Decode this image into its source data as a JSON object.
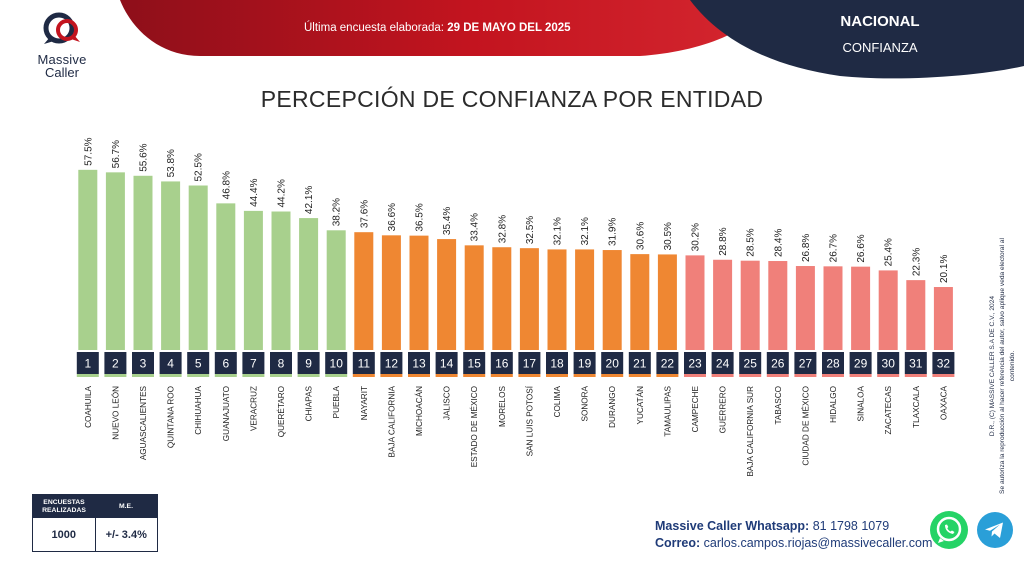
{
  "brand": {
    "name_line1": "Massive",
    "name_line2": "Caller"
  },
  "banner": {
    "prefix": "Última encuesta elaborada: ",
    "date": "29 DE MAYO DEL 2025",
    "scope": "NACIONAL",
    "topic": "CONFIANZA"
  },
  "colors": {
    "navy": "#1f2a44",
    "red": "#b5131f",
    "green": "#a8d08d",
    "orange": "#ef8732",
    "salmon": "#f0807a"
  },
  "side_note": {
    "line1": "D.R., (C) MASSIVE CALLER S.A DE C.V., 2024",
    "line2": "Se autoriza la reproducción al hacer referencia del autor, salvo aplique veda electoral al contenido."
  },
  "stats": {
    "col1_header": "ENCUESTAS REALIZADAS",
    "col2_header": "M.E.",
    "col1_value": "1000",
    "col2_value": "+/- 3.4%"
  },
  "contact": {
    "whatsapp_label": "Massive Caller Whatsapp:",
    "whatsapp_number": " 81 1798 1079",
    "email_label": "Correo:",
    "email": " carlos.campos.riojas@massivecaller.com"
  },
  "icons": [
    "logo-icon",
    "whatsapp-icon",
    "telegram-icon"
  ],
  "chart_data": {
    "type": "bar",
    "title": "PERCEPCIÓN DE CONFIANZA POR ENTIDAD",
    "ylim": [
      0,
      60
    ],
    "grid": false,
    "categories": [
      "COAHUILA",
      "NUEVO LEÓN",
      "AGUASCALIENTES",
      "QUINTANA ROO",
      "CHIHUAHUA",
      "GUANAJUATO",
      "VERACRUZ",
      "QUERÉTARO",
      "CHIAPAS",
      "PUEBLA",
      "NAYARIT",
      "BAJA CALIFORNIA",
      "MICHOACÁN",
      "JALISCO",
      "ESTADO DE MÉXICO",
      "MORELOS",
      "SAN LUIS POTOSÍ",
      "COLIMA",
      "SONORA",
      "DURANGO",
      "YUCATÁN",
      "TAMAULIPAS",
      "CAMPECHE",
      "GUERRERO",
      "BAJA CALIFORNIA SUR",
      "TABASCO",
      "CIUDAD DE MÉXICO",
      "HIDALGO",
      "SINALOA",
      "ZACATECAS",
      "TLAXCALA",
      "OAXACA"
    ],
    "values": [
      57.5,
      56.7,
      55.6,
      53.8,
      52.5,
      46.8,
      44.4,
      44.2,
      42.1,
      38.2,
      37.6,
      36.6,
      36.5,
      35.4,
      33.4,
      32.8,
      32.5,
      32.1,
      32.1,
      31.9,
      30.6,
      30.5,
      30.2,
      28.8,
      28.5,
      28.4,
      26.8,
      26.7,
      26.6,
      25.4,
      22.3,
      20.1
    ],
    "value_labels": [
      "57.5%",
      "56.7%",
      "55.6%",
      "53.8%",
      "52.5%",
      "46.8%",
      "44.4%",
      "44.2%",
      "42.1%",
      "38.2%",
      "37.6%",
      "36.6%",
      "36.5%",
      "35.4%",
      "33.4%",
      "32.8%",
      "32.5%",
      "32.1%",
      "32.1%",
      "31.9%",
      "30.6%",
      "30.5%",
      "30.2%",
      "28.8%",
      "28.5%",
      "28.4%",
      "26.8%",
      "26.7%",
      "26.6%",
      "25.4%",
      "22.3%",
      "20.1%"
    ],
    "ranks": [
      "1",
      "2",
      "3",
      "4",
      "5",
      "6",
      "7",
      "8",
      "9",
      "10",
      "11",
      "12",
      "13",
      "14",
      "15",
      "16",
      "17",
      "18",
      "19",
      "20",
      "21",
      "22",
      "23",
      "24",
      "25",
      "26",
      "27",
      "28",
      "29",
      "30",
      "31",
      "32"
    ],
    "bar_groups": [
      "green",
      "green",
      "green",
      "green",
      "green",
      "green",
      "green",
      "green",
      "green",
      "green",
      "orange",
      "orange",
      "orange",
      "orange",
      "orange",
      "orange",
      "orange",
      "orange",
      "orange",
      "orange",
      "orange",
      "orange",
      "salmon",
      "salmon",
      "salmon",
      "salmon",
      "salmon",
      "salmon",
      "salmon",
      "salmon",
      "salmon",
      "salmon"
    ]
  }
}
